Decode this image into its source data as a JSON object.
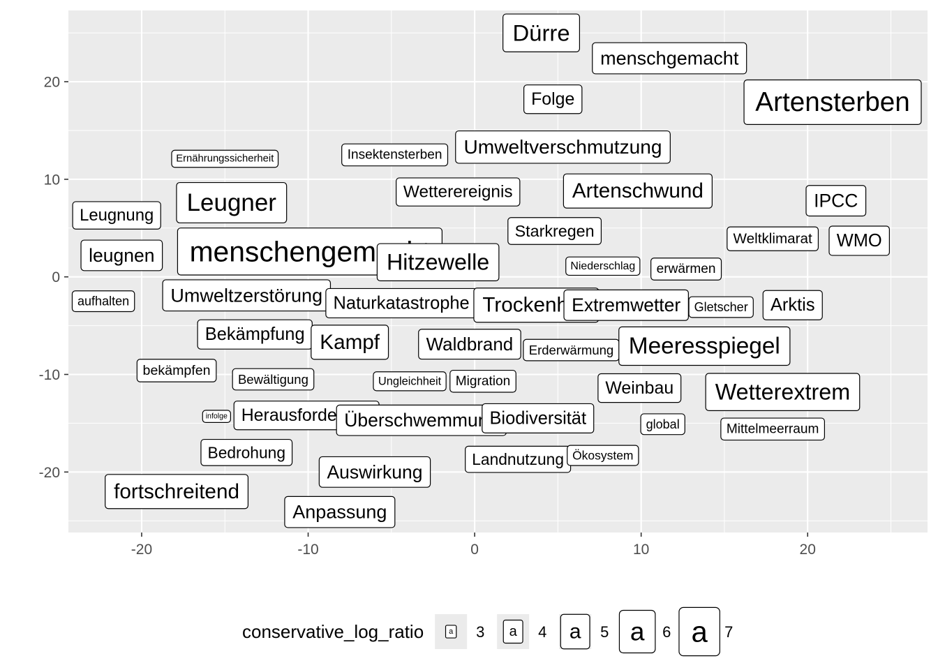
{
  "chart_data": {
    "type": "scatter",
    "subtype": "labelled word map",
    "title": "",
    "xlabel": "",
    "ylabel": "",
    "xlim": [
      -24.4,
      27.2
    ],
    "ylim": [
      -26.2,
      27.3
    ],
    "x_ticks": [
      -20,
      -10,
      0,
      10,
      20
    ],
    "y_ticks": [
      -20,
      -10,
      0,
      10,
      20
    ],
    "grid": true,
    "background": "#ebebeb",
    "grid_color": "#ffffff",
    "legend": {
      "title": "conservative_log_ratio",
      "position": "bottom",
      "items": [
        {
          "value": 3,
          "label": "3",
          "glyph": "a"
        },
        {
          "value": 4,
          "label": "4",
          "glyph": "a"
        },
        {
          "value": 5,
          "label": "5",
          "glyph": "a"
        },
        {
          "value": 6,
          "label": "6",
          "glyph": "a"
        },
        {
          "value": 7,
          "label": "7",
          "glyph": "a"
        }
      ]
    },
    "points": [
      {
        "label": "Dürre",
        "x": 4.0,
        "y": 25.0,
        "size": 6.2
      },
      {
        "label": "menschgemacht",
        "x": 11.7,
        "y": 22.4,
        "size": 5.1
      },
      {
        "label": "Folge",
        "x": 4.7,
        "y": 18.2,
        "size": 4.7
      },
      {
        "label": "Artensterben",
        "x": 21.5,
        "y": 17.9,
        "size": 7.3
      },
      {
        "label": "Ernährungssicherheit",
        "x": -15.0,
        "y": 12.1,
        "size": 2.8
      },
      {
        "label": "Insektensterben",
        "x": -4.8,
        "y": 12.5,
        "size": 3.6
      },
      {
        "label": "Umweltverschmutzung",
        "x": 5.3,
        "y": 13.3,
        "size": 5.3
      },
      {
        "label": "Wetterereignis",
        "x": -1.0,
        "y": 8.7,
        "size": 4.6
      },
      {
        "label": "Artenschwund",
        "x": 9.8,
        "y": 8.8,
        "size": 5.6
      },
      {
        "label": "IPCC",
        "x": 21.7,
        "y": 7.8,
        "size": 5.0
      },
      {
        "label": "Leugner",
        "x": -14.6,
        "y": 7.6,
        "size": 6.6
      },
      {
        "label": "Leugnung",
        "x": -21.5,
        "y": 6.3,
        "size": 4.5
      },
      {
        "label": "Starkregen",
        "x": 4.8,
        "y": 4.7,
        "size": 4.4
      },
      {
        "label": "Weltklimarat",
        "x": 17.9,
        "y": 3.9,
        "size": 3.9
      },
      {
        "label": "WMO",
        "x": 23.1,
        "y": 3.7,
        "size": 4.8
      },
      {
        "label": "menschengemacht",
        "x": -9.9,
        "y": 2.6,
        "size": 7.7
      },
      {
        "label": "leugnen",
        "x": -21.2,
        "y": 2.2,
        "size": 5.0
      },
      {
        "label": "Hitzewelle",
        "x": -2.2,
        "y": 1.5,
        "size": 6.1
      },
      {
        "label": "Niederschlag",
        "x": 7.7,
        "y": 1.1,
        "size": 3.0
      },
      {
        "label": "erwärmen",
        "x": 12.7,
        "y": 0.8,
        "size": 3.6
      },
      {
        "label": "aufhalten",
        "x": -22.3,
        "y": -2.5,
        "size": 3.4
      },
      {
        "label": "Umweltzerstörung",
        "x": -13.7,
        "y": -1.9,
        "size": 5.1
      },
      {
        "label": "Naturkatastrophe",
        "x": -4.4,
        "y": -2.7,
        "size": 4.8
      },
      {
        "label": "Trockenheit",
        "x": 3.7,
        "y": -2.9,
        "size": 5.6
      },
      {
        "label": "Extremwetter",
        "x": 9.1,
        "y": -2.9,
        "size": 5.0
      },
      {
        "label": "Gletscher",
        "x": 14.8,
        "y": -3.1,
        "size": 3.4
      },
      {
        "label": "Arktis",
        "x": 19.1,
        "y": -2.9,
        "size": 4.8
      },
      {
        "label": "Bekämpfung",
        "x": -13.2,
        "y": -5.9,
        "size": 4.8
      },
      {
        "label": "Kampf",
        "x": -7.5,
        "y": -6.7,
        "size": 5.6
      },
      {
        "label": "Waldbrand",
        "x": -0.3,
        "y": -6.9,
        "size": 4.9
      },
      {
        "label": "Erderwärmung",
        "x": 5.8,
        "y": -7.5,
        "size": 3.5
      },
      {
        "label": "Meeresspiegel",
        "x": 13.8,
        "y": -7.1,
        "size": 6.3
      },
      {
        "label": "bekämpfen",
        "x": -17.9,
        "y": -9.6,
        "size": 3.7
      },
      {
        "label": "Bewältigung",
        "x": -12.1,
        "y": -10.5,
        "size": 3.5
      },
      {
        "label": "Ungleichheit",
        "x": -3.9,
        "y": -10.7,
        "size": 3.1
      },
      {
        "label": "Migration",
        "x": 0.5,
        "y": -10.7,
        "size": 3.6
      },
      {
        "label": "Weinbau",
        "x": 9.9,
        "y": -11.4,
        "size": 4.7
      },
      {
        "label": "Wetterextrem",
        "x": 18.5,
        "y": -11.8,
        "size": 6.1
      },
      {
        "label": "infolge",
        "x": -15.5,
        "y": -14.3,
        "size": 2.0
      },
      {
        "label": "Herausforderung",
        "x": -10.1,
        "y": -14.2,
        "size": 4.7
      },
      {
        "label": "Überschwemmung",
        "x": -3.2,
        "y": -14.7,
        "size": 5.0
      },
      {
        "label": "Biodiversität",
        "x": 3.8,
        "y": -14.5,
        "size": 4.8
      },
      {
        "label": "global",
        "x": 11.3,
        "y": -15.1,
        "size": 3.4
      },
      {
        "label": "Mittelmeerraum",
        "x": 17.9,
        "y": -15.6,
        "size": 3.6
      },
      {
        "label": "Bedrohung",
        "x": -13.7,
        "y": -18.0,
        "size": 4.3
      },
      {
        "label": "Landnutzung",
        "x": 2.6,
        "y": -18.7,
        "size": 4.3
      },
      {
        "label": "Ökosystem",
        "x": 7.7,
        "y": -18.3,
        "size": 3.3
      },
      {
        "label": "Auswirkung",
        "x": -6.0,
        "y": -20.0,
        "size": 5.0
      },
      {
        "label": "fortschreitend",
        "x": -17.9,
        "y": -22.0,
        "size": 5.6
      },
      {
        "label": "Anpassung",
        "x": -8.1,
        "y": -24.1,
        "size": 5.1
      }
    ]
  }
}
